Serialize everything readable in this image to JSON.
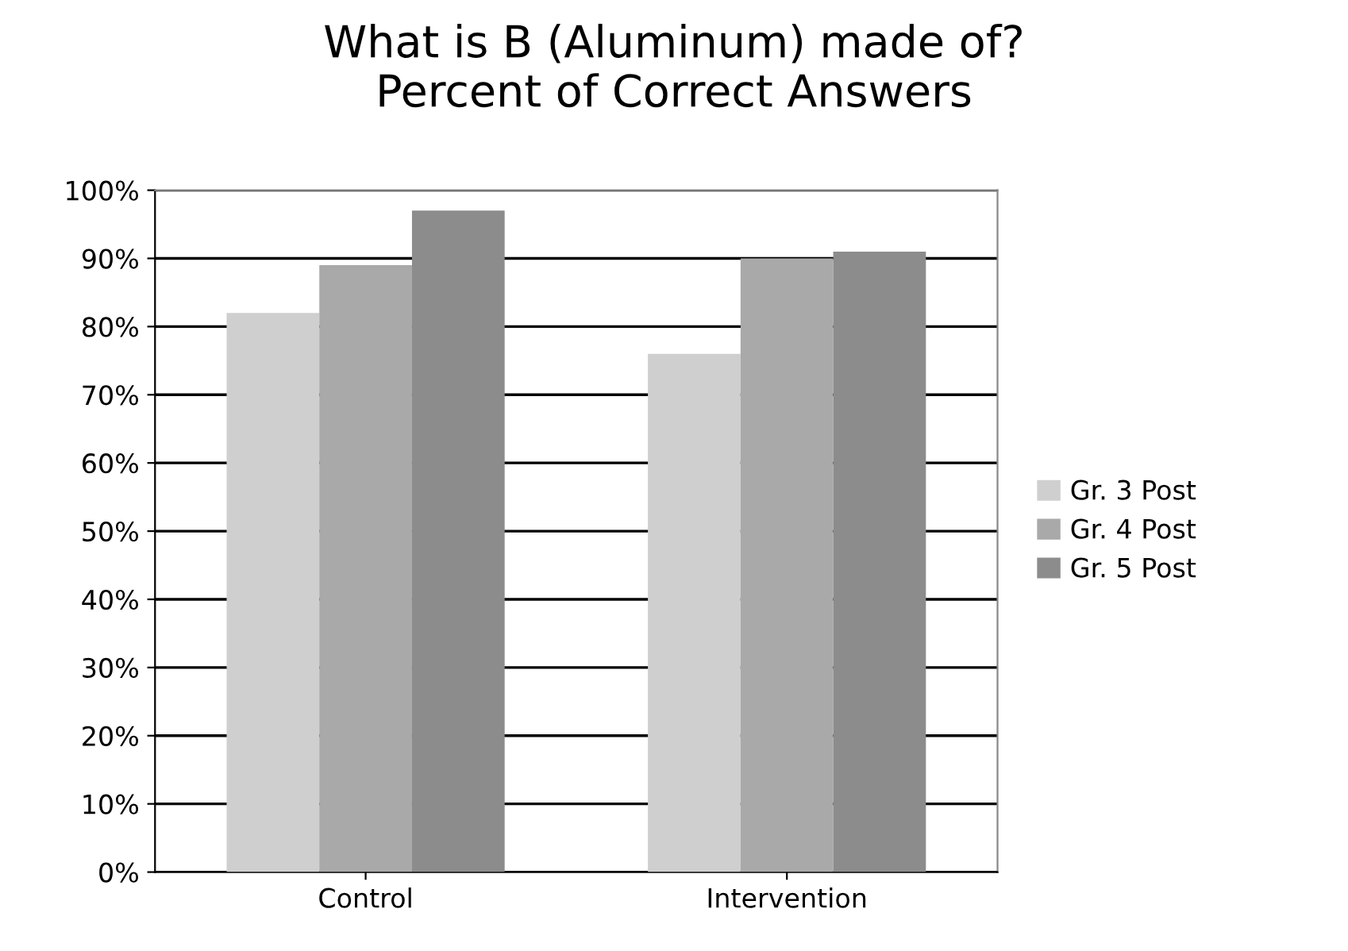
{
  "chart_data": {
    "type": "bar",
    "title": "What is B (Aluminum) made of?\nPercent of Correct Answers",
    "categories": [
      "Control",
      "Intervention"
    ],
    "series": [
      {
        "name": "Gr. 3 Post",
        "color": "#cfcfcf",
        "values": [
          82,
          76
        ]
      },
      {
        "name": "Gr. 4 Post",
        "color": "#a9a9a9",
        "values": [
          89,
          90
        ]
      },
      {
        "name": "Gr. 5 Post",
        "color": "#8c8c8c",
        "values": [
          97,
          91
        ]
      }
    ],
    "ylim": [
      0,
      100
    ],
    "yticks": [
      {
        "value": 0,
        "label": "0%"
      },
      {
        "value": 10,
        "label": "10%"
      },
      {
        "value": 20,
        "label": "20%"
      },
      {
        "value": 30,
        "label": "30%"
      },
      {
        "value": 40,
        "label": "40%"
      },
      {
        "value": 50,
        "label": "50%"
      },
      {
        "value": 60,
        "label": "60%"
      },
      {
        "value": 70,
        "label": "70%"
      },
      {
        "value": 80,
        "label": "80%"
      },
      {
        "value": 90,
        "label": "90%"
      },
      {
        "value": 100,
        "label": "100%"
      }
    ],
    "grid": "y",
    "legend": "right"
  }
}
